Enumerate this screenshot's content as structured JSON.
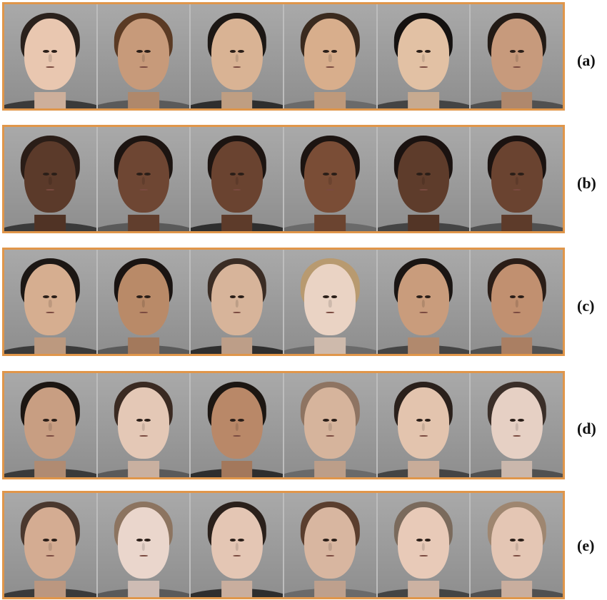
{
  "rows": [
    {
      "label": "(a)",
      "photos": [
        {
          "skin": "#e9c7b0",
          "hair": "#2a211c"
        },
        {
          "skin": "#c79a7a",
          "hair": "#5a3a24"
        },
        {
          "skin": "#d9b394",
          "hair": "#1c1714"
        },
        {
          "skin": "#d8ae8c",
          "hair": "#3a2a1e"
        },
        {
          "skin": "#e2c1a4",
          "hair": "#141110"
        },
        {
          "skin": "#c79a7c",
          "hair": "#221a15"
        }
      ]
    },
    {
      "label": "(b)",
      "photos": [
        {
          "skin": "#5b3a2a",
          "hair": "#2a1d17"
        },
        {
          "skin": "#6e4633",
          "hair": "#1c1411"
        },
        {
          "skin": "#6a4330",
          "hair": "#1c1411"
        },
        {
          "skin": "#7a4d36",
          "hair": "#1c1411"
        },
        {
          "skin": "#5e3c2b",
          "hair": "#1a1210"
        },
        {
          "skin": "#6a4330",
          "hair": "#1a1210"
        }
      ]
    },
    {
      "label": "(c)",
      "photos": [
        {
          "skin": "#d6ae90",
          "hair": "#1c1714"
        },
        {
          "skin": "#b98a68",
          "hair": "#1a1412"
        },
        {
          "skin": "#d7b49a",
          "hair": "#3a2c24"
        },
        {
          "skin": "#ead3c4",
          "hair": "#b89a70"
        },
        {
          "skin": "#c99c7c",
          "hair": "#1a1513"
        },
        {
          "skin": "#c19070",
          "hair": "#2a1d17"
        }
      ]
    },
    {
      "label": "(d)",
      "photos": [
        {
          "skin": "#c89e82",
          "hair": "#1c1612"
        },
        {
          "skin": "#e4c8b6",
          "hair": "#3a2a22"
        },
        {
          "skin": "#b98868",
          "hair": "#1c1612"
        },
        {
          "skin": "#d6b49c",
          "hair": "#8e7462"
        },
        {
          "skin": "#e3c4ae",
          "hair": "#2a201b"
        },
        {
          "skin": "#e6d0c4",
          "hair": "#3a2e28"
        }
      ]
    },
    {
      "label": "(e)",
      "photos": [
        {
          "skin": "#d4ac92",
          "hair": "#4a382e"
        },
        {
          "skin": "#ead6cc",
          "hair": "#8c7460"
        },
        {
          "skin": "#e4c6b4",
          "hair": "#2a201b"
        },
        {
          "skin": "#d8b6a0",
          "hair": "#5a3e2e"
        },
        {
          "skin": "#e8cab8",
          "hair": "#7a6a5c"
        },
        {
          "skin": "#e4c6b4",
          "hair": "#9e8670"
        }
      ]
    }
  ],
  "colors": {
    "frame": "#e0964a",
    "label": "#111111"
  }
}
